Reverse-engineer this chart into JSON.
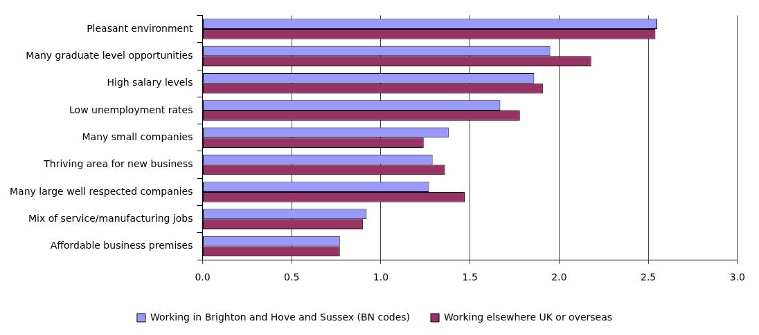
{
  "chart_data": {
    "type": "bar",
    "orientation": "horizontal",
    "categories": [
      "Pleasant environment",
      "Many graduate level opportunities",
      "High salary levels",
      "Low unemployment rates",
      "Many small companies",
      "Thriving area for new business",
      "Many large well respected companies",
      "Mix of service/manufacturing jobs",
      "Affordable business premises"
    ],
    "series": [
      {
        "name": "Working in Brighton and Hove and Sussex (BN codes)",
        "color": "#9999ff",
        "values": [
          2.55,
          1.95,
          1.86,
          1.67,
          1.38,
          1.29,
          1.27,
          0.92,
          0.77
        ]
      },
      {
        "name": "Working elsewhere UK or overseas",
        "color": "#993366",
        "values": [
          2.54,
          2.18,
          1.91,
          1.78,
          1.24,
          1.36,
          1.47,
          0.9,
          0.77
        ]
      }
    ],
    "xlim": [
      0,
      3
    ],
    "xticks": [
      {
        "value": 0,
        "label": "0.0"
      },
      {
        "value": 0.5,
        "label": "0.5"
      },
      {
        "value": 1,
        "label": "1.0"
      },
      {
        "value": 1.5,
        "label": "1.5"
      },
      {
        "value": 2,
        "label": "2.0"
      },
      {
        "value": 2.5,
        "label": "2.5"
      },
      {
        "value": 3,
        "label": "3.0"
      }
    ],
    "grid": "x",
    "legend": "bottom"
  }
}
